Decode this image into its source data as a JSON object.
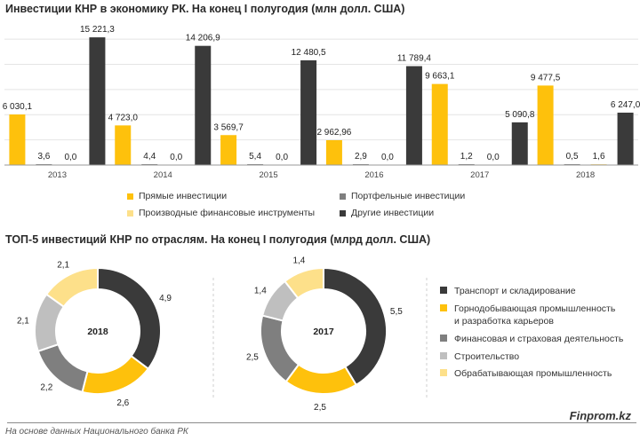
{
  "titles": {
    "chart1": "Инвестиции КНР в экономику РК. На конец I полугодия (млн долл. США)",
    "chart2": "ТОП-5 инвестиций КНР по отраслям. На конец I полугодия (млрд долл. США)"
  },
  "colors": {
    "direct": "#fec10c",
    "portfolio": "#7f7f7f",
    "derivatives": "#fde08a",
    "other": "#3a3a3a",
    "transport": "#3a3a3a",
    "mining": "#fec10c",
    "finance": "#7f7f7f",
    "construction": "#bfbfbf",
    "manufacturing": "#fde08a"
  },
  "chart_data": [
    {
      "type": "bar",
      "title": "Инвестиции КНР в экономику РК. На конец I полугодия (млн долл. США)",
      "categories": [
        "2013",
        "2014",
        "2015",
        "2016",
        "2017",
        "2018"
      ],
      "ylim": [
        0,
        16500
      ],
      "grid": true,
      "series": [
        {
          "name": "Прямые инвестиции",
          "key": "direct",
          "values": [
            6030.1,
            4723.0,
            3569.7,
            2962.96,
            9663.1,
            9477.5
          ],
          "labels": [
            "6 030,1",
            "4 723,0",
            "3 569,7",
            "2 962,96",
            "9 663,1",
            "9 477,5"
          ]
        },
        {
          "name": "Портфельные инвестиции",
          "key": "portfolio",
          "values": [
            3.6,
            4.4,
            5.4,
            2.9,
            1.2,
            0.5
          ],
          "labels": [
            "3,6",
            "4,4",
            "5,4",
            "2,9",
            "1,2",
            "0,5"
          ]
        },
        {
          "name": "Производные финансовые инструменты",
          "key": "derivatives",
          "values": [
            0.0,
            0.0,
            0.0,
            0.0,
            0.0,
            1.6
          ],
          "labels": [
            "0,0",
            "0,0",
            "0,0",
            "0,0",
            "0,0",
            "1,6"
          ]
        },
        {
          "name": "Другие инвестиции",
          "key": "other",
          "values": [
            15221.3,
            14206.9,
            12480.5,
            11789.4,
            5090.8,
            6247.0
          ],
          "labels": [
            "15 221,3",
            "14 206,9",
            "12 480,5",
            "11 789,4",
            "5 090,8",
            "6 247,0"
          ]
        }
      ]
    },
    {
      "type": "pie",
      "center_label": "2018",
      "title": "ТОП-5 инвестиций КНР по отраслям. На конец I полугодия (млрд долл. США)",
      "slices": [
        {
          "name": "Транспорт и складирование",
          "key": "transport",
          "value": 4.9,
          "label": "4,9"
        },
        {
          "name": "Горнодобывающая промышленность и разработка карьеров",
          "key": "mining",
          "value": 2.6,
          "label": "2,6"
        },
        {
          "name": "Финансовая и страховая деятельность",
          "key": "finance",
          "value": 2.2,
          "label": "2,2"
        },
        {
          "name": "Строительство",
          "key": "construction",
          "value": 2.1,
          "label": "2,1"
        },
        {
          "name": "Обрабатывающая промышленность",
          "key": "manufacturing",
          "value": 2.1,
          "label": "2,1"
        }
      ]
    },
    {
      "type": "pie",
      "center_label": "2017",
      "title": "ТОП-5 инвестиций КНР по отраслям. На конец I полугодия (млрд долл. США)",
      "slices": [
        {
          "name": "Транспорт и складирование",
          "key": "transport",
          "value": 5.5,
          "label": "5,5"
        },
        {
          "name": "Горнодобывающая промышленность и разработка карьеров",
          "key": "mining",
          "value": 2.5,
          "label": "2,5"
        },
        {
          "name": "Финансовая и страховая деятельность",
          "key": "finance",
          "value": 2.5,
          "label": "2,5"
        },
        {
          "name": "Строительство",
          "key": "construction",
          "value": 1.4,
          "label": "1,4"
        },
        {
          "name": "Обрабатывающая промышленность",
          "key": "manufacturing",
          "value": 1.4,
          "label": "1,4"
        }
      ]
    }
  ],
  "legend1": [
    {
      "label": "Прямые инвестиции",
      "key": "direct"
    },
    {
      "label": "Портфельные инвестиции",
      "key": "portfolio"
    },
    {
      "label": "Производные финансовые инструменты",
      "key": "derivatives"
    },
    {
      "label": "Другие инвестиции",
      "key": "other"
    }
  ],
  "legend2": [
    {
      "label": "Транспорт и складирование",
      "key": "transport"
    },
    {
      "label": "Горнодобывающая промышленность\nи разработка карьеров",
      "key": "mining"
    },
    {
      "label": "Финансовая и страховая деятельность",
      "key": "finance"
    },
    {
      "label": "Строительство",
      "key": "construction"
    },
    {
      "label": "Обрабатывающая промышленность",
      "key": "manufacturing"
    }
  ],
  "footer": {
    "brand": "Finprom.kz",
    "source": "На основе данных Национального банка РК"
  }
}
